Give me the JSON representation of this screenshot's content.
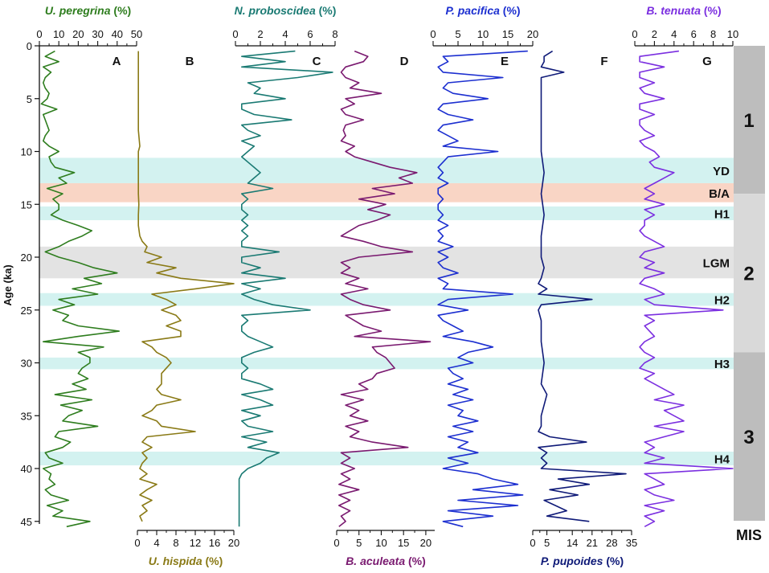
{
  "figure": {
    "y_axis_title": "Age (ka)",
    "y_ticks": [
      0,
      5,
      10,
      15,
      20,
      25,
      30,
      35,
      40,
      45
    ],
    "mis_label": "MIS",
    "mis_stages": [
      {
        "label": "1",
        "from": 0,
        "to": 14,
        "color": "#bdbdbd"
      },
      {
        "label": "2",
        "from": 14,
        "to": 29,
        "color": "#d9d9d9"
      },
      {
        "label": "3",
        "from": 29,
        "to": 46,
        "color": "#bdbdbd"
      }
    ],
    "bands": [
      {
        "label": "YD",
        "from": 10.6,
        "to": 13.0,
        "color": "#d3f2f0"
      },
      {
        "label": "B/A",
        "from": 13.0,
        "to": 14.8,
        "color": "#f9d5c5"
      },
      {
        "label": "H1",
        "from": 15.2,
        "to": 16.5,
        "color": "#d3f2f0"
      },
      {
        "label": "LGM",
        "from": 19.0,
        "to": 22.0,
        "color": "#e3e3e3"
      },
      {
        "label": "H2",
        "from": 23.4,
        "to": 24.6,
        "color": "#d3f2f0"
      },
      {
        "label": "H3",
        "from": 29.5,
        "to": 30.6,
        "color": "#d3f2f0"
      },
      {
        "label": "H4",
        "from": 38.4,
        "to": 39.7,
        "color": "#d3f2f0"
      }
    ]
  },
  "chart_data": [
    {
      "type": "line",
      "panel": "A",
      "name": "U. peregrina",
      "title": "U. peregrina (%)",
      "color": "#2e7d1e",
      "xlim": [
        0,
        50
      ],
      "x_ticks": [
        0,
        10,
        20,
        30,
        40,
        50
      ],
      "axis": "top",
      "age": [
        0.5,
        1,
        1.5,
        2,
        2.5,
        3,
        3.5,
        4,
        4.5,
        5,
        5.5,
        6,
        6.5,
        7,
        7.5,
        8,
        8.5,
        9,
        9.5,
        10,
        10.5,
        11,
        11.5,
        12,
        12.5,
        13,
        13.5,
        14,
        14.5,
        15,
        15.5,
        16,
        16.5,
        17,
        17.5,
        18,
        18.5,
        19,
        19.5,
        20,
        20.5,
        21,
        21.5,
        22,
        22.5,
        23,
        23.5,
        24,
        24.5,
        25,
        25.5,
        26,
        26.5,
        27,
        27.5,
        28,
        28.5,
        29,
        29.5,
        30,
        30.5,
        31,
        31.5,
        32,
        32.5,
        33,
        33.5,
        34,
        34.5,
        35,
        35.5,
        36,
        36.5,
        37,
        37.5,
        38,
        38.5,
        39,
        39.5,
        40,
        40.5,
        41,
        41.5,
        42,
        42.5,
        43,
        43.5,
        44,
        44.5,
        45,
        45.5
      ],
      "values": [
        8,
        3,
        10,
        2,
        6,
        3,
        2,
        3,
        5,
        4,
        1,
        9,
        2,
        3,
        4,
        5,
        3,
        2,
        5,
        10,
        5,
        6,
        8,
        18,
        10,
        14,
        4,
        12,
        7,
        10,
        10,
        6,
        12,
        20,
        27,
        22,
        15,
        10,
        3,
        10,
        20,
        28,
        40,
        23,
        32,
        17,
        30,
        10,
        18,
        7,
        15,
        12,
        20,
        41,
        20,
        2,
        33,
        20,
        26,
        26,
        22,
        20,
        25,
        17,
        24,
        8,
        27,
        11,
        22,
        15,
        12,
        30,
        10,
        8,
        16,
        12,
        3,
        5,
        12,
        2,
        6,
        5,
        8,
        3,
        6,
        15,
        4,
        12,
        7,
        26,
        14
      ],
      "xlabel": "",
      "ylabel": "Age (ka)"
    },
    {
      "type": "line",
      "panel": "B",
      "name": "U. hispida",
      "title": "U. hispida (%)",
      "color": "#8a7a16",
      "xlim": [
        0,
        20
      ],
      "x_ticks": [
        0,
        4,
        8,
        12,
        16,
        20
      ],
      "axis": "bottom",
      "age": [
        0.5,
        2,
        4,
        6,
        8,
        9.5,
        10,
        11,
        12,
        13,
        14,
        15,
        16,
        17,
        18,
        18.5,
        19,
        19.5,
        20,
        20.5,
        21,
        21.5,
        22,
        22.5,
        23,
        23.5,
        24,
        24.5,
        25,
        25.5,
        26,
        26.5,
        27,
        27.5,
        28,
        28.5,
        29,
        29.5,
        30,
        30.5,
        31,
        31.5,
        32,
        32.5,
        33,
        33.5,
        34,
        34.5,
        35,
        35.5,
        36,
        36.5,
        37,
        37.5,
        38,
        38.5,
        39,
        39.5,
        40,
        40.5,
        41,
        41.5,
        42,
        42.5,
        43,
        43.5,
        44,
        44.5,
        45
      ],
      "values": [
        0.2,
        0.2,
        0.2,
        0.2,
        0.2,
        0.5,
        0.2,
        0.2,
        0.2,
        0.2,
        0.2,
        0.3,
        0.2,
        0.2,
        0.5,
        1,
        2,
        1.5,
        5,
        2,
        8,
        4,
        9,
        20,
        12,
        3,
        6,
        8,
        5,
        8,
        9,
        6,
        9,
        9,
        1,
        3,
        4,
        6,
        7,
        6,
        5,
        5,
        5,
        4,
        5,
        9,
        4,
        3,
        1,
        4,
        5,
        12,
        2,
        1,
        3,
        1,
        2,
        1,
        0.5,
        2,
        0.5,
        4,
        2,
        0.5,
        3,
        1,
        2,
        0.5,
        1
      ],
      "xlabel": "",
      "ylabel": ""
    },
    {
      "type": "line",
      "panel": "C",
      "name": "N. proboscidea",
      "title": "N. proboscidea (%)",
      "color": "#1a7a73",
      "xlim": [
        0,
        8
      ],
      "x_ticks": [
        0,
        2,
        4,
        6,
        8
      ],
      "axis": "top",
      "age": [
        0.5,
        1,
        1.5,
        2,
        2.5,
        3,
        3.5,
        4,
        4.5,
        5,
        5.5,
        6,
        6.5,
        7,
        7.5,
        8,
        8.5,
        9,
        9.5,
        10,
        10.5,
        11,
        11.5,
        12,
        12.5,
        13,
        13.5,
        14,
        14.5,
        15,
        15.5,
        16,
        16.5,
        17,
        17.5,
        18,
        18.5,
        19,
        19.5,
        20,
        20.5,
        21,
        21.5,
        22,
        22.5,
        23,
        23.5,
        24,
        24.5,
        25,
        25.5,
        26,
        26.5,
        27,
        27.5,
        28,
        28.5,
        29,
        29.5,
        30,
        30.5,
        31,
        31.5,
        32,
        32.5,
        33,
        33.5,
        34,
        34.5,
        35,
        35.5,
        36,
        36.5,
        37,
        37.5,
        38,
        38.5,
        39,
        39.5,
        40,
        40.5,
        41,
        41.5,
        42,
        42.5,
        43,
        43.5,
        44,
        44.5,
        45,
        45.5
      ],
      "values": [
        4.8,
        0.5,
        4,
        0.5,
        7.8,
        5,
        1,
        2,
        1.5,
        4,
        0.5,
        0.5,
        1.5,
        4.5,
        0.5,
        1,
        2,
        0.5,
        1.5,
        1,
        0.5,
        1,
        1.5,
        2,
        1.5,
        1,
        3,
        0.5,
        1,
        0.5,
        0.5,
        1,
        0.5,
        1,
        0.5,
        1,
        0.5,
        0.5,
        3.5,
        0.5,
        0.5,
        2,
        0.5,
        4,
        0.5,
        2,
        0.5,
        1.5,
        3,
        6,
        0.5,
        1,
        0.5,
        0.5,
        1,
        2,
        3,
        1.5,
        0.5,
        0.5,
        1,
        0.5,
        0.5,
        2,
        3,
        0.5,
        2,
        3,
        0.5,
        2,
        0.5,
        1,
        3,
        0.5,
        2.5,
        1,
        3.5,
        2.5,
        2,
        1,
        0.5,
        0.3,
        0.3,
        0.3,
        0.3,
        0.3,
        0.3,
        0.3,
        0.3,
        0.3,
        0.3
      ],
      "xlabel": "",
      "ylabel": ""
    },
    {
      "type": "line",
      "panel": "D",
      "name": "B. aculeata",
      "title": "B. aculeata (%)",
      "color": "#7a1a70",
      "xlim": [
        0,
        22
      ],
      "x_ticks": [
        0,
        5,
        10,
        15,
        20
      ],
      "axis": "bottom",
      "age": [
        0.5,
        1,
        1.5,
        2,
        2.5,
        3,
        3.5,
        4,
        4.5,
        5,
        5.5,
        6,
        6.5,
        7,
        7.5,
        8,
        8.5,
        9,
        9.5,
        10,
        10.5,
        11,
        11.5,
        12,
        12.5,
        13,
        13.5,
        14,
        14.5,
        15,
        15.5,
        16,
        16.5,
        17,
        17.5,
        18,
        18.5,
        19,
        19.5,
        20,
        20.5,
        21,
        21.5,
        22,
        22.5,
        23,
        23.5,
        24,
        24.5,
        25,
        25.5,
        26,
        26.5,
        27,
        27.5,
        28,
        28.5,
        29,
        29.5,
        30,
        30.5,
        31,
        31.5,
        32,
        32.5,
        33,
        33.5,
        34,
        34.5,
        35,
        35.5,
        36,
        36.5,
        37,
        37.5,
        38,
        38.5,
        39,
        39.5,
        40,
        40.5,
        41,
        41.5,
        42,
        42.5,
        43,
        43.5,
        44,
        44.5,
        45,
        45.5
      ],
      "values": [
        4,
        7,
        6,
        2,
        1,
        2,
        5,
        3,
        10,
        2,
        4,
        1,
        2,
        6,
        2,
        1.5,
        2,
        1,
        4,
        2,
        4,
        8,
        12,
        18,
        14,
        17,
        8,
        13,
        5,
        11,
        7,
        12,
        9,
        5,
        3,
        1,
        6,
        10,
        17,
        5,
        1,
        3,
        1,
        5,
        2,
        7,
        1,
        3,
        6,
        12,
        2,
        4,
        6,
        10,
        4,
        21,
        8,
        9,
        11,
        12,
        13,
        9,
        8,
        5,
        7,
        1,
        6,
        2,
        5,
        3,
        7,
        2,
        5,
        3,
        8,
        16,
        1,
        3,
        1,
        4,
        1,
        3,
        0.5,
        5,
        0.5,
        3,
        0.5,
        3,
        1,
        2,
        0.5
      ],
      "xlabel": "",
      "ylabel": ""
    },
    {
      "type": "line",
      "panel": "E",
      "name": "P. pacifica",
      "title": "P. pacifica (%)",
      "color": "#1c2fd0",
      "xlim": [
        0,
        20
      ],
      "x_ticks": [
        0,
        5,
        10,
        15,
        20
      ],
      "axis": "top",
      "age": [
        0.5,
        1,
        1.5,
        2,
        2.5,
        3,
        3.5,
        4,
        4.5,
        5,
        5.5,
        6,
        6.5,
        7,
        7.5,
        8,
        8.5,
        9,
        9.5,
        10,
        10.5,
        11,
        11.5,
        12,
        12.5,
        13,
        13.5,
        14,
        14.5,
        15,
        15.5,
        16,
        16.5,
        17,
        17.5,
        18,
        18.5,
        19,
        19.5,
        20,
        20.5,
        21,
        21.5,
        22,
        22.5,
        23,
        23.5,
        24,
        24.5,
        25,
        25.5,
        26,
        26.5,
        27,
        27.5,
        28,
        28.5,
        29,
        29.5,
        30,
        30.5,
        31,
        31.5,
        32,
        32.5,
        33,
        33.5,
        34,
        34.5,
        35,
        35.5,
        36,
        36.5,
        37,
        37.5,
        38,
        38.5,
        39,
        39.5,
        40,
        40.5,
        41,
        41.5,
        42,
        42.5,
        43,
        43.5,
        44,
        44.5,
        45,
        45.5
      ],
      "values": [
        19,
        2,
        3,
        1,
        2,
        14,
        3,
        2,
        4,
        11,
        2,
        1,
        3,
        8,
        2,
        1,
        3,
        5,
        2,
        13,
        3,
        2,
        1,
        2,
        1,
        3,
        1,
        1,
        2,
        1,
        1,
        2,
        1,
        3,
        1,
        2,
        1,
        4,
        1,
        3,
        1,
        2,
        5,
        1,
        3,
        2,
        16,
        3,
        1,
        7,
        1,
        2,
        4,
        6,
        2,
        8,
        12,
        7,
        5,
        8,
        3,
        4,
        6,
        3,
        7,
        4,
        8,
        3,
        6,
        5,
        9,
        4,
        8,
        3,
        7,
        5,
        9,
        3,
        7,
        2,
        9,
        12,
        17,
        8,
        18,
        5,
        17,
        3,
        12,
        2,
        6
      ],
      "xlabel": "",
      "ylabel": ""
    },
    {
      "type": "line",
      "panel": "F",
      "name": "P. pupoides",
      "title": "P. pupoides (%)",
      "color": "#0f1a78",
      "xlim": [
        0,
        35
      ],
      "x_ticks": [
        0,
        5,
        14,
        21,
        28,
        35
      ],
      "axis": "bottom",
      "age": [
        0.5,
        1,
        1.5,
        2,
        2.5,
        3,
        4,
        6,
        8,
        10,
        12,
        14,
        16,
        18,
        20,
        21,
        22,
        22.5,
        23,
        23.5,
        24,
        24.5,
        25,
        26,
        28,
        30,
        32,
        33,
        34,
        35,
        36,
        36.5,
        37,
        37.5,
        38,
        38.5,
        39,
        39.5,
        40,
        40.5,
        41,
        41.5,
        42,
        42.5,
        43,
        43.5,
        44,
        44.5,
        45
      ],
      "values": [
        7,
        4,
        4,
        3,
        11,
        3,
        3,
        3,
        3,
        3,
        4,
        3,
        4,
        3,
        3,
        4,
        3,
        2,
        5,
        2,
        21,
        3,
        2,
        3,
        3,
        4,
        3,
        5,
        4,
        3,
        3,
        2,
        6,
        19,
        2,
        5,
        3,
        5,
        3,
        33,
        9,
        20,
        6,
        16,
        4,
        8,
        12,
        5,
        20
      ],
      "xlabel": "",
      "ylabel": ""
    },
    {
      "type": "line",
      "panel": "G",
      "name": "B. tenuata",
      "title": "B. tenuata (%)",
      "color": "#7b2fe0",
      "xlim": [
        0,
        10
      ],
      "x_ticks": [
        0,
        2,
        4,
        6,
        8,
        10
      ],
      "axis": "top",
      "age": [
        0.5,
        1,
        1.5,
        2,
        2.5,
        3,
        3.5,
        4,
        4.5,
        5,
        5.5,
        6,
        6.5,
        7,
        7.5,
        8,
        8.5,
        9,
        9.5,
        10,
        10.5,
        11,
        11.5,
        12,
        12.5,
        13,
        13.5,
        14,
        14.5,
        15,
        15.5,
        16,
        16.5,
        17,
        17.5,
        18,
        18.5,
        19,
        19.5,
        20,
        20.5,
        21,
        21.5,
        22,
        22.5,
        23,
        23.5,
        24,
        24.5,
        25,
        25.5,
        26,
        26.5,
        27,
        27.5,
        28,
        28.5,
        29,
        29.5,
        30,
        30.5,
        31,
        31.5,
        32,
        32.5,
        33,
        33.5,
        34,
        34.5,
        35,
        35.5,
        36,
        36.5,
        37,
        37.5,
        38,
        38.5,
        39,
        39.5,
        40,
        40.5,
        41,
        41.5,
        42,
        42.5,
        43,
        43.5,
        44,
        44.5,
        45,
        45.5
      ],
      "values": [
        4.5,
        0.5,
        0.5,
        3,
        0.5,
        0.5,
        2,
        0.5,
        1,
        3,
        0.5,
        0.5,
        2,
        0.5,
        0.5,
        1,
        2,
        0.5,
        1,
        2,
        2.5,
        1.5,
        2,
        4,
        3,
        2,
        1,
        2,
        1,
        3,
        1,
        2,
        1,
        1,
        0.5,
        1,
        2,
        3,
        1,
        0.5,
        2,
        1,
        3,
        1,
        0.5,
        2,
        3,
        1,
        2,
        9,
        1,
        2,
        1,
        1.5,
        2,
        1,
        0.5,
        1,
        2,
        1,
        0.5,
        2,
        1,
        2,
        3,
        4,
        2,
        5,
        3,
        4,
        5,
        2,
        5,
        3,
        1,
        2,
        1,
        3,
        1,
        10,
        1,
        2,
        3,
        1,
        2,
        4,
        1,
        3,
        1,
        2,
        1
      ],
      "xlabel": "",
      "ylabel": ""
    }
  ]
}
